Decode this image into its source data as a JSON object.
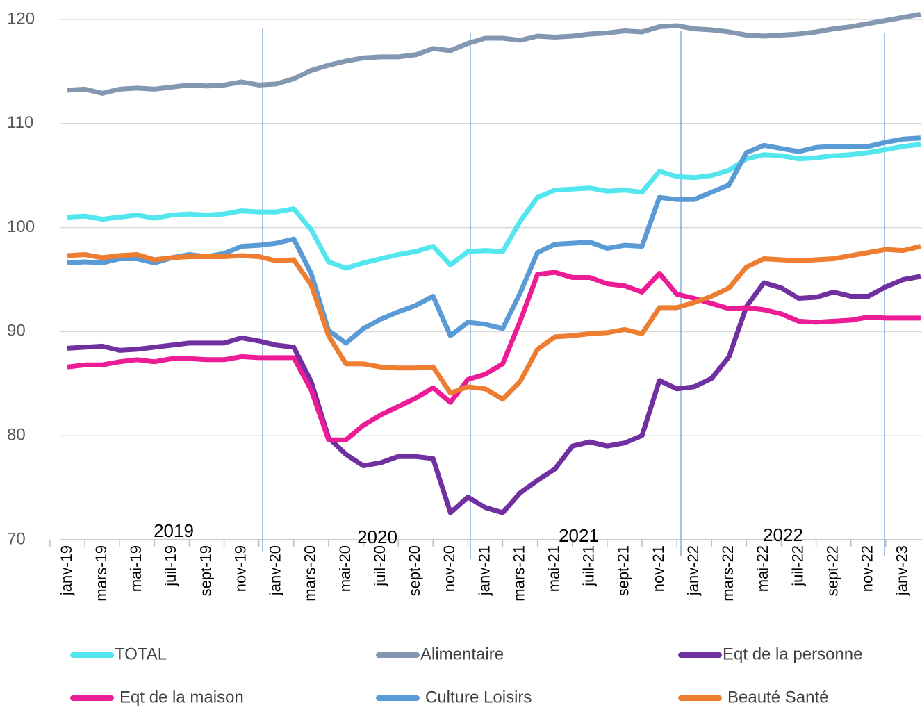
{
  "chart_data": {
    "type": "line",
    "categories": [
      "janv-19",
      null,
      "mars-19",
      null,
      "mai-19",
      null,
      "juil-19",
      null,
      "sept-19",
      null,
      "nov-19",
      null,
      "janv-20",
      null,
      "mars-20",
      null,
      "mai-20",
      null,
      "juil-20",
      null,
      "sept-20",
      null,
      "nov-20",
      null,
      "janv-21",
      null,
      "mars-21",
      null,
      "mai-21",
      null,
      "juil-21",
      null,
      "sept-21",
      null,
      "nov-21",
      null,
      "janv-22",
      null,
      "mars-22",
      null,
      "mai-22",
      null,
      "juil-22",
      null,
      "sept-22",
      null,
      "nov-22",
      null,
      "janv-23",
      null
    ],
    "series": [
      {
        "name": "TOTAL",
        "color": "#53e6ee",
        "values": [
          101,
          101.1,
          100.8,
          101,
          101.2,
          100.9,
          101.2,
          101.3,
          101.2,
          101.3,
          101.6,
          101.5,
          101.5,
          101.8,
          99.8,
          96.7,
          96.1,
          96.6,
          97,
          97.4,
          97.7,
          98.2,
          96.4,
          97.7,
          97.8,
          97.7,
          100.6,
          102.9,
          103.6,
          103.7,
          103.8,
          103.5,
          103.6,
          103.4,
          105.4,
          104.9,
          104.8,
          105,
          105.5,
          106.6,
          107,
          106.9,
          106.6,
          106.7,
          106.9,
          107,
          107.2,
          107.5,
          107.8,
          108
        ]
      },
      {
        "name": "Alimentaire",
        "color": "#8497b0",
        "values": [
          113.2,
          113.3,
          112.9,
          113.3,
          113.4,
          113.3,
          113.5,
          113.7,
          113.6,
          113.7,
          114,
          113.7,
          113.8,
          114.3,
          115.1,
          115.6,
          116,
          116.3,
          116.4,
          116.4,
          116.6,
          117.2,
          117,
          117.7,
          118.2,
          118.2,
          118,
          118.4,
          118.3,
          118.4,
          118.6,
          118.7,
          118.9,
          118.8,
          119.3,
          119.4,
          119.1,
          119,
          118.8,
          118.5,
          118.4,
          118.5,
          118.6,
          118.8,
          119.1,
          119.3,
          119.6,
          119.9,
          120.2,
          120.5
        ]
      },
      {
        "name": "Eqt de la personne",
        "color": "#7030a0",
        "values": [
          88.4,
          88.5,
          88.6,
          88.2,
          88.3,
          88.5,
          88.7,
          88.9,
          88.9,
          88.9,
          89.4,
          89.1,
          88.7,
          88.5,
          85.2,
          79.8,
          78.2,
          77.1,
          77.4,
          78,
          78,
          77.8,
          72.6,
          74.1,
          73.1,
          72.6,
          74.5,
          75.7,
          76.8,
          79,
          79.4,
          79,
          79.3,
          80,
          85.3,
          84.5,
          84.7,
          85.5,
          87.6,
          92.4,
          94.7,
          94.2,
          93.2,
          93.3,
          93.8,
          93.4,
          93.4,
          94.3,
          95,
          95.3
        ]
      },
      {
        "name": "Eqt de la maison",
        "color": "#ec1c97",
        "values": [
          86.6,
          86.8,
          86.8,
          87.1,
          87.3,
          87.1,
          87.4,
          87.4,
          87.3,
          87.3,
          87.6,
          87.5,
          87.5,
          87.5,
          84.4,
          79.6,
          79.6,
          81,
          82,
          82.8,
          83.6,
          84.6,
          83.2,
          85.4,
          85.9,
          86.9,
          91,
          95.5,
          95.7,
          95.2,
          95.2,
          94.6,
          94.4,
          93.8,
          95.6,
          93.6,
          93.2,
          92.7,
          92.2,
          92.3,
          92.1,
          91.7,
          91,
          90.9,
          91,
          91.1,
          91.4,
          91.3,
          91.3,
          91.3
        ]
      },
      {
        "name": "Culture Loisirs",
        "color": "#5b9bd5",
        "values": [
          96.6,
          96.7,
          96.6,
          97,
          97,
          96.6,
          97.1,
          97.4,
          97.2,
          97.5,
          98.2,
          98.3,
          98.5,
          98.9,
          95.6,
          90.1,
          88.9,
          90.3,
          91.2,
          91.9,
          92.5,
          93.4,
          89.6,
          90.9,
          90.7,
          90.3,
          93.7,
          97.6,
          98.4,
          98.5,
          98.6,
          98,
          98.3,
          98.2,
          102.9,
          102.7,
          102.7,
          103.4,
          104.1,
          107.2,
          107.9,
          107.6,
          107.3,
          107.7,
          107.8,
          107.8,
          107.8,
          108.2,
          108.5,
          108.6
        ]
      },
      {
        "name": "Beauté Santé",
        "color": "#ed7d31",
        "values": [
          97.3,
          97.4,
          97.1,
          97.3,
          97.4,
          96.9,
          97.1,
          97.2,
          97.2,
          97.2,
          97.3,
          97.2,
          96.8,
          96.9,
          94.5,
          89.6,
          86.9,
          86.9,
          86.6,
          86.5,
          86.5,
          86.6,
          84.1,
          84.7,
          84.5,
          83.5,
          85.2,
          88.3,
          89.5,
          89.6,
          89.8,
          89.9,
          90.2,
          89.8,
          92.3,
          92.3,
          92.8,
          93.4,
          94.2,
          96.2,
          97,
          96.9,
          96.8,
          96.9,
          97,
          97.3,
          97.6,
          97.9,
          97.8,
          98.2
        ]
      }
    ],
    "annotations": [
      "2019",
      "2020",
      "2021",
      "2022"
    ],
    "ylim": [
      70,
      120
    ],
    "yticks": [
      70,
      80,
      90,
      100,
      110,
      120
    ],
    "grid": true,
    "legend": "bottom"
  }
}
